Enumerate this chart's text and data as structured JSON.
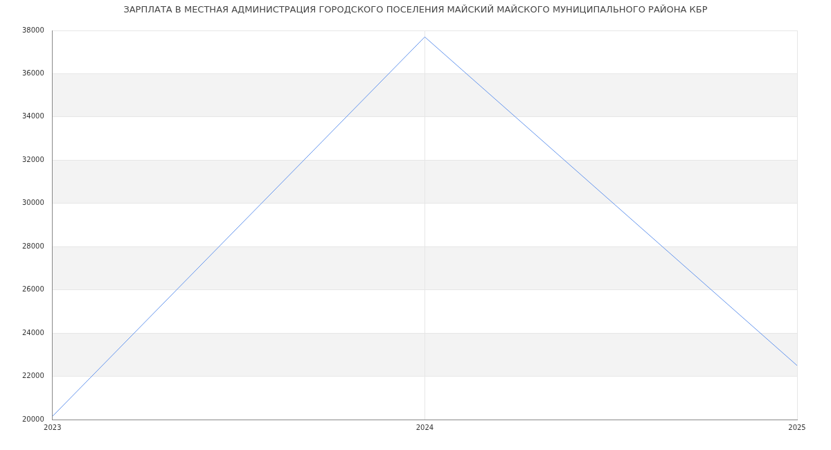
{
  "chart_data": {
    "type": "line",
    "title": "ЗАРПЛАТА В МЕСТНАЯ АДМИНИСТРАЦИЯ ГОРОДСКОГО ПОСЕЛЕНИЯ МАЙСКИЙ МАЙСКОГО МУНИЦИПАЛЬНОГО РАЙОНА КБР",
    "x": [
      2023,
      2024,
      2025
    ],
    "series": [
      {
        "color": "#6495ed",
        "values": [
          20150,
          37700,
          22500
        ]
      }
    ],
    "xlim": [
      2023,
      2025
    ],
    "xticks": [
      2023,
      2024,
      2025
    ],
    "ylim": [
      20000,
      38000
    ],
    "yticks": [
      20000,
      22000,
      24000,
      26000,
      28000,
      30000,
      32000,
      34000,
      36000,
      38000
    ],
    "grid": true,
    "legend": false,
    "marker": "none",
    "line_style": "solid"
  }
}
